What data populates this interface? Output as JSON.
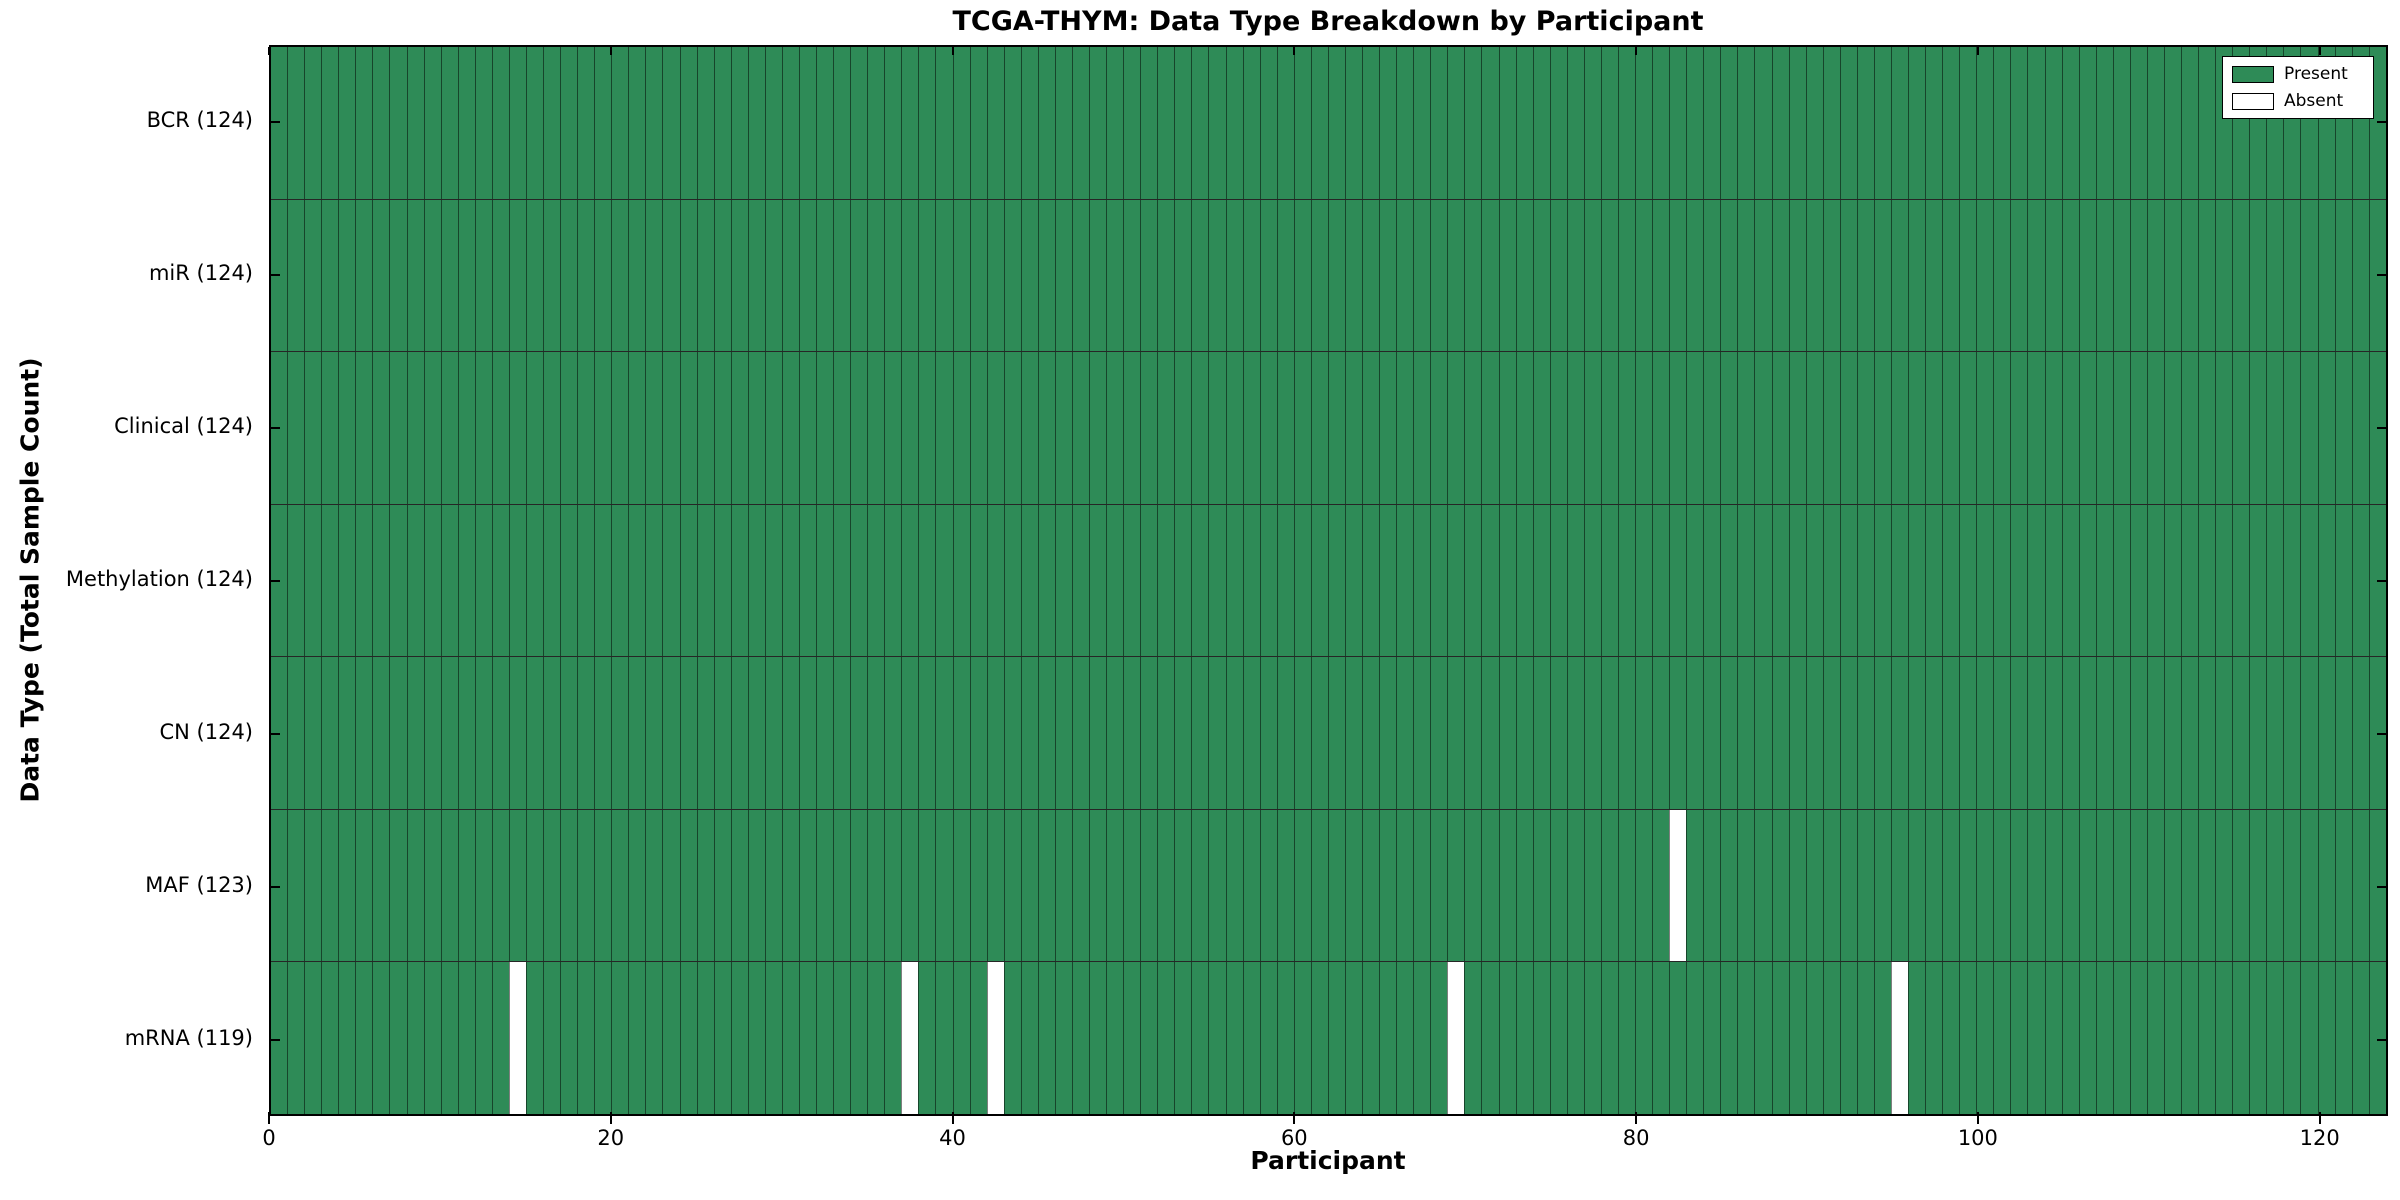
{
  "title": "TCGA-THYM: Data Type Breakdown by Participant",
  "chart_data": {
    "type": "heatmap",
    "title": "TCGA-THYM: Data Type Breakdown by Participant",
    "xlabel": "Participant",
    "ylabel": "Data Type (Total Sample Count)",
    "x_ticks": [
      0,
      20,
      40,
      60,
      80,
      100,
      120
    ],
    "x_range": [
      0,
      124
    ],
    "n_participants": 124,
    "grid": "cell-edges",
    "legend_position": "upper-right",
    "legend": [
      {
        "label": "Present",
        "color": "#2E8B57"
      },
      {
        "label": "Absent",
        "color": "#FFFFFF"
      }
    ],
    "colors": {
      "present": "#2E8B57",
      "absent": "#FFFFFF",
      "cell_edge": "rgba(0,0,0,0.5)",
      "text": "#000000"
    },
    "rows": [
      {
        "name": "BCR",
        "label": "BCR (124)",
        "total_samples": 124,
        "absent_participants": []
      },
      {
        "name": "miR",
        "label": "miR (124)",
        "total_samples": 124,
        "absent_participants": []
      },
      {
        "name": "Clinical",
        "label": "Clinical (124)",
        "total_samples": 124,
        "absent_participants": []
      },
      {
        "name": "Methylation",
        "label": "Methylation (124)",
        "total_samples": 124,
        "absent_participants": []
      },
      {
        "name": "CN",
        "label": "CN (124)",
        "total_samples": 124,
        "absent_participants": []
      },
      {
        "name": "MAF",
        "label": "MAF (123)",
        "total_samples": 123,
        "absent_participants": [
          82
        ]
      },
      {
        "name": "mRNA",
        "label": "mRNA (119)",
        "total_samples": 119,
        "absent_participants": [
          14,
          37,
          42,
          69,
          95
        ]
      }
    ]
  }
}
